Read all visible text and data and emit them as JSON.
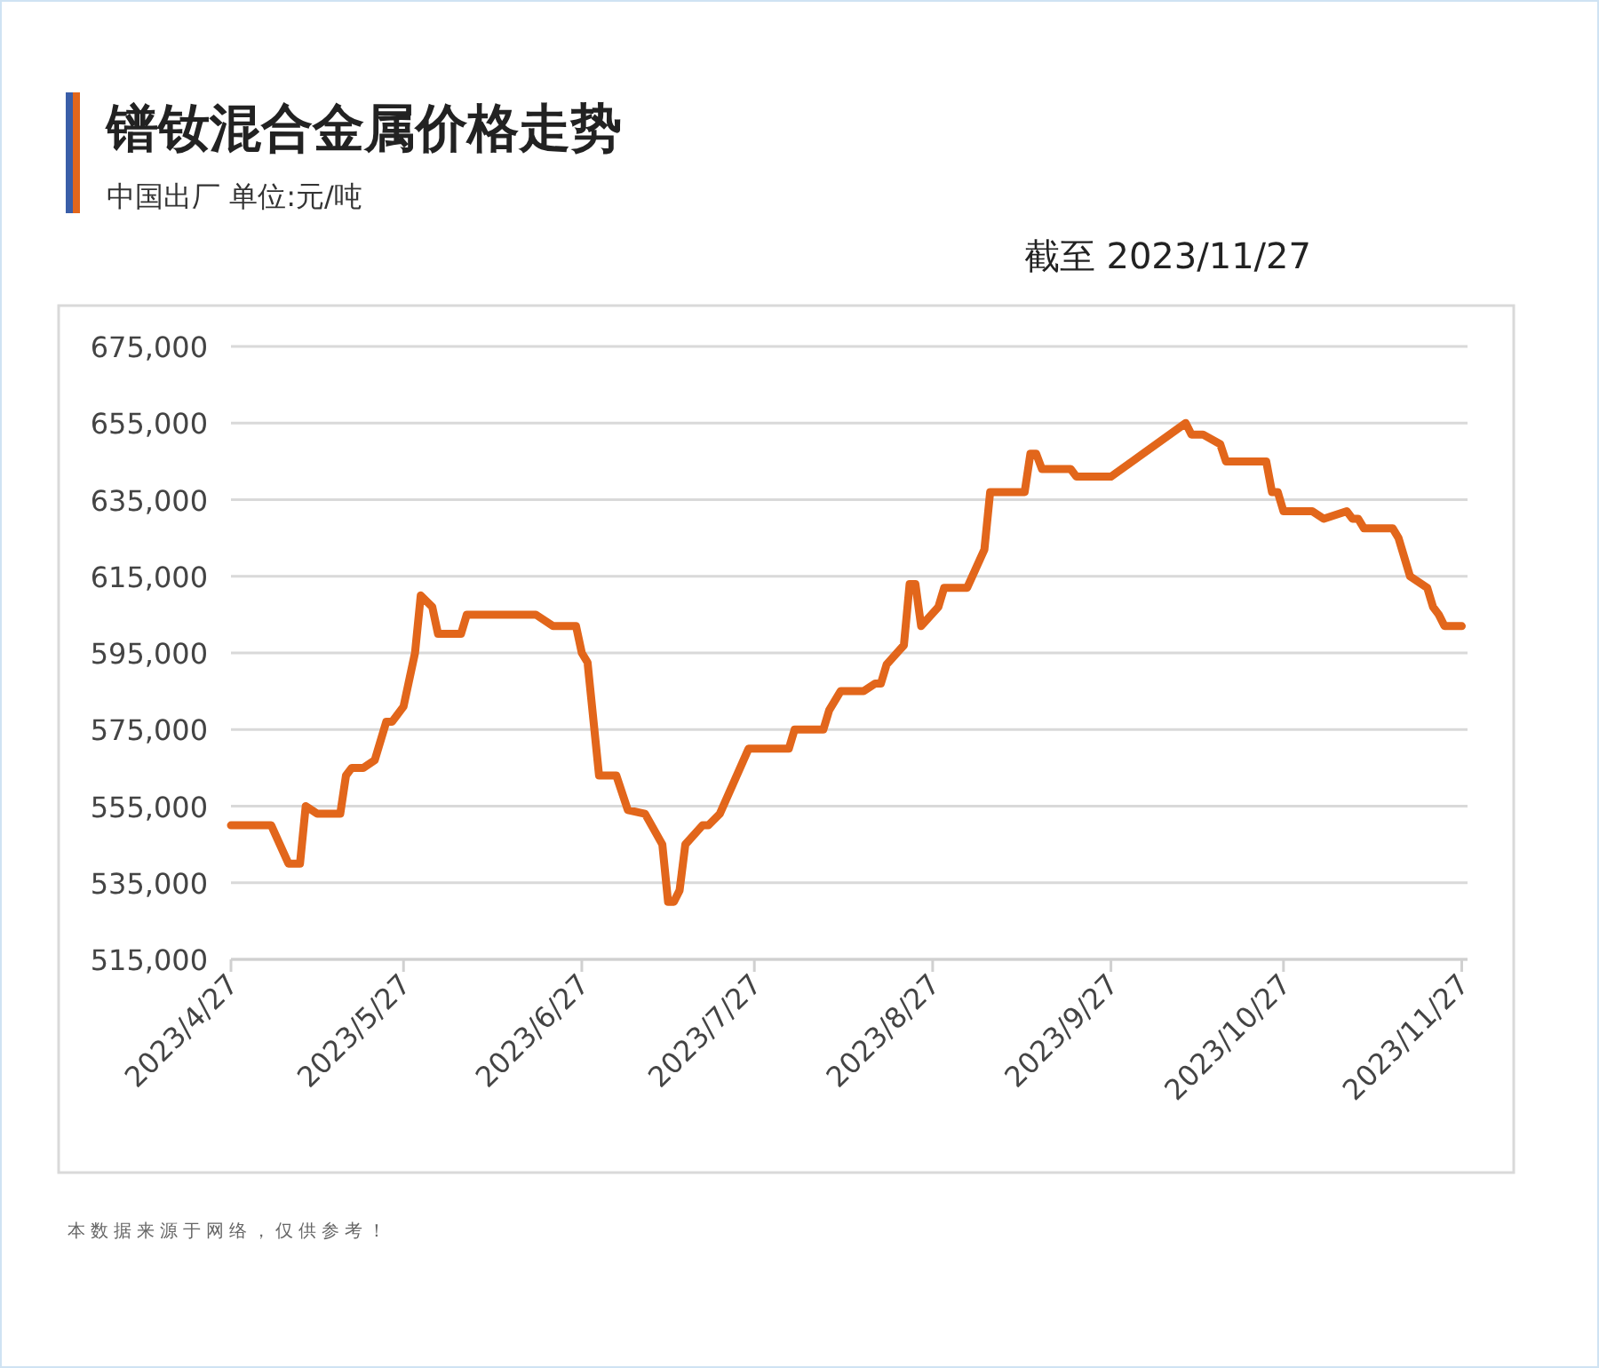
{
  "chart_data": {
    "type": "line",
    "title": "镨钕混合金属价格走势",
    "subtitle": "中国出厂  单位:元/吨",
    "annotations": [
      "截至 2023/11/27",
      "本数据来源于网络，仅供参考！"
    ],
    "x": [
      "2023-04-27",
      "2023-05-04",
      "2023-05-07",
      "2023-05-09",
      "2023-05-10",
      "2023-05-12",
      "2023-05-16",
      "2023-05-17",
      "2023-05-18",
      "2023-05-20",
      "2023-05-22",
      "2023-05-24",
      "2023-05-25",
      "2023-05-27",
      "2023-05-29",
      "2023-05-30",
      "2023-06-01",
      "2023-06-02",
      "2023-06-06",
      "2023-06-07",
      "2023-06-19",
      "2023-06-22",
      "2023-06-26",
      "2023-06-27",
      "2023-06-28",
      "2023-06-30",
      "2023-07-03",
      "2023-07-05",
      "2023-07-08",
      "2023-07-11",
      "2023-07-12",
      "2023-07-13",
      "2023-07-14",
      "2023-07-15",
      "2023-07-18",
      "2023-07-19",
      "2023-07-21",
      "2023-07-26",
      "2023-08-02",
      "2023-08-03",
      "2023-08-08",
      "2023-08-09",
      "2023-08-11",
      "2023-08-15",
      "2023-08-17",
      "2023-08-18",
      "2023-08-19",
      "2023-08-22",
      "2023-08-23",
      "2023-08-24",
      "2023-08-25",
      "2023-08-28",
      "2023-08-29",
      "2023-09-02",
      "2023-09-05",
      "2023-09-06",
      "2023-09-12",
      "2023-09-13",
      "2023-09-14",
      "2023-09-15",
      "2023-09-20",
      "2023-09-21",
      "2023-09-27",
      "2023-10-10",
      "2023-10-11",
      "2023-10-13",
      "2023-10-16",
      "2023-10-17",
      "2023-10-24",
      "2023-10-25",
      "2023-10-26",
      "2023-10-27",
      "2023-11-01",
      "2023-11-03",
      "2023-11-07",
      "2023-11-08",
      "2023-11-09",
      "2023-11-10",
      "2023-11-15",
      "2023-11-16",
      "2023-11-18",
      "2023-11-21",
      "2023-11-22",
      "2023-11-23",
      "2023-11-24",
      "2023-11-27"
    ],
    "series": [
      {
        "color": "#e2661b",
        "values": [
          550000,
          550000,
          540000,
          540000,
          555000,
          553000,
          553000,
          563000,
          565000,
          565000,
          567000,
          577000,
          577000,
          581000,
          595000,
          610000,
          607000,
          600000,
          600000,
          605000,
          605000,
          602000,
          602000,
          595000,
          592500,
          563000,
          563000,
          554000,
          553000,
          545000,
          530000,
          530000,
          533000,
          545000,
          550000,
          550000,
          553000,
          570000,
          570000,
          575000,
          575000,
          580000,
          585000,
          585000,
          587000,
          587000,
          592000,
          597000,
          613000,
          613000,
          602000,
          607000,
          612000,
          612000,
          622000,
          637000,
          637000,
          647000,
          647000,
          643000,
          643000,
          641000,
          641000,
          655000,
          652000,
          652000,
          649500,
          645000,
          645000,
          637000,
          637000,
          632000,
          632000,
          630000,
          632000,
          630000,
          630000,
          627500,
          627500,
          625000,
          615000,
          612000,
          607000,
          605000,
          602000,
          602000
        ]
      }
    ],
    "xlim": [
      "2023-04-27",
      "2023-11-28"
    ],
    "xticks": [
      {
        "value": "2023-04-27",
        "label": "2023/4/27"
      },
      {
        "value": "2023-05-27",
        "label": "2023/5/27"
      },
      {
        "value": "2023-06-27",
        "label": "2023/6/27"
      },
      {
        "value": "2023-07-27",
        "label": "2023/7/27"
      },
      {
        "value": "2023-08-27",
        "label": "2023/8/27"
      },
      {
        "value": "2023-09-27",
        "label": "2023/9/27"
      },
      {
        "value": "2023-10-27",
        "label": "2023/10/27"
      },
      {
        "value": "2023-11-27",
        "label": "2023/11/27"
      }
    ],
    "ylim": [
      515000,
      675000
    ],
    "yticks": [
      {
        "value": 515000,
        "label": "515,000"
      },
      {
        "value": 535000,
        "label": "535,000"
      },
      {
        "value": 555000,
        "label": "555,000"
      },
      {
        "value": 575000,
        "label": "575,000"
      },
      {
        "value": 595000,
        "label": "595,000"
      },
      {
        "value": 615000,
        "label": "615,000"
      },
      {
        "value": 635000,
        "label": "635,000"
      },
      {
        "value": 655000,
        "label": "655,000"
      },
      {
        "value": 675000,
        "label": "675,000"
      }
    ],
    "grid": "y",
    "line_style": "solid",
    "marker": "none"
  }
}
